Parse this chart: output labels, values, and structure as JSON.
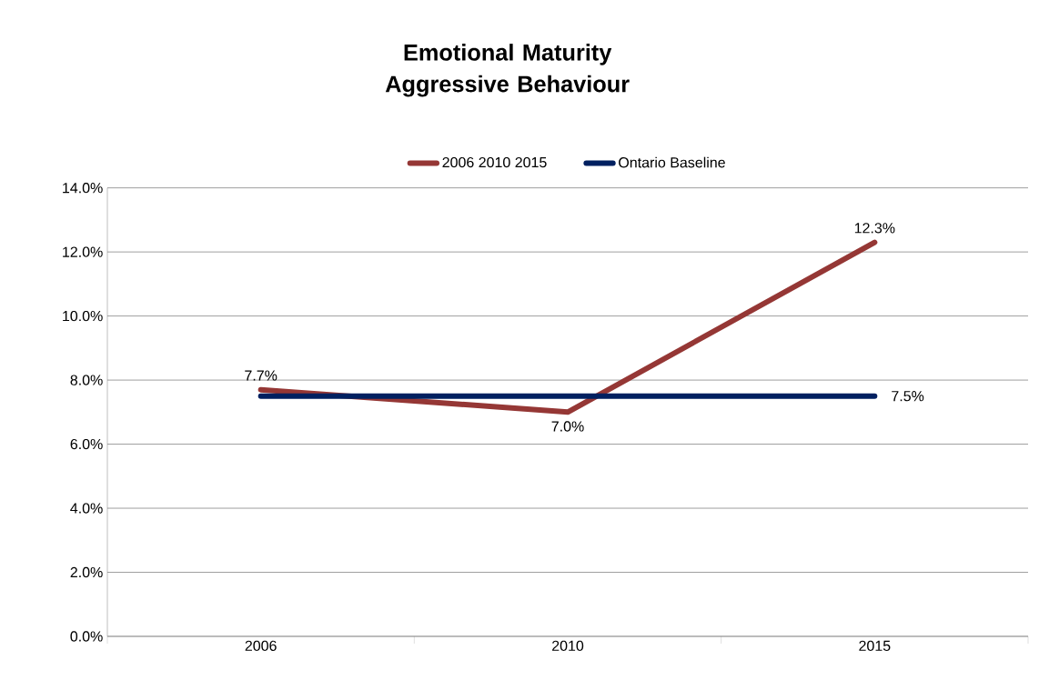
{
  "chart_data": {
    "type": "line",
    "title": "Emotional Maturity Aggressive Behaviour",
    "categories": [
      "2006",
      "2010",
      "2015"
    ],
    "series": [
      {
        "name": "2006 2010 2015",
        "color": "#953735",
        "values": [
          7.7,
          7.0,
          12.3
        ],
        "value_labels": [
          "7.7%",
          "7.0%",
          "12.3%"
        ]
      },
      {
        "name": "Ontario Baseline",
        "color": "#002060",
        "values": [
          7.5,
          7.5,
          7.5
        ],
        "value_labels": [
          null,
          null,
          "7.5%"
        ]
      }
    ],
    "ylim": [
      0,
      14
    ],
    "yticks": [
      {
        "value": 0,
        "label": "0.0%"
      },
      {
        "value": 2,
        "label": "2.0%"
      },
      {
        "value": 4,
        "label": "4.0%"
      },
      {
        "value": 6,
        "label": "6.0%"
      },
      {
        "value": 8,
        "label": "8.0%"
      },
      {
        "value": 10,
        "label": "10.0%"
      },
      {
        "value": 12,
        "label": "12.0%"
      },
      {
        "value": 14,
        "label": "14.0%"
      }
    ],
    "grid": "y",
    "legend": "top"
  }
}
